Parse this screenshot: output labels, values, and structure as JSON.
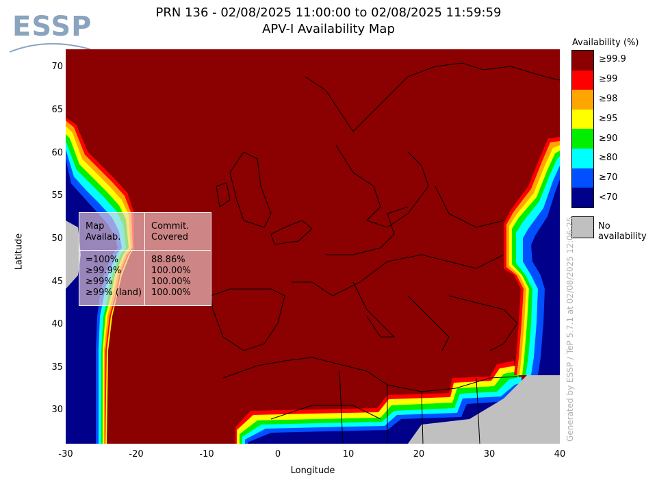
{
  "header": {
    "logo_text": "ESSP",
    "title_line1": "PRN 136 - 02/08/2025 11:00:00 to 02/08/2025 11:59:59",
    "title_line2": "APV-I Availability Map"
  },
  "axes": {
    "xlabel": "Longitude",
    "ylabel": "Latitude",
    "xticks": [
      "-30",
      "-20",
      "-10",
      "0",
      "10",
      "20",
      "30",
      "40"
    ],
    "yticks": [
      "70",
      "65",
      "60",
      "55",
      "50",
      "45",
      "40",
      "35",
      "30"
    ]
  },
  "stats_table": {
    "col1_header_a": "Map",
    "col1_header_b": "Availab.",
    "col2_header_a": "Commit.",
    "col2_header_b": "Covered",
    "rows": [
      {
        "label": "=100%",
        "value": "88.86%"
      },
      {
        "label": "≥99.9%",
        "value": "100.00%"
      },
      {
        "label": "≥99%",
        "value": "100.00%"
      },
      {
        "label": "≥99% (land)",
        "value": "100.00%"
      }
    ]
  },
  "legend": {
    "title": "Availability (%)",
    "items": [
      {
        "label": "≥99.9",
        "color": "#8b0000"
      },
      {
        "label": "≥99",
        "color": "#ff0000"
      },
      {
        "label": "≥98",
        "color": "#ffa500"
      },
      {
        "label": "≥95",
        "color": "#ffff00"
      },
      {
        "label": "≥90",
        "color": "#00ee00"
      },
      {
        "label": "≥80",
        "color": "#00ffff"
      },
      {
        "label": "≥70",
        "color": "#0050ff"
      },
      {
        "label": "<70",
        "color": "#00008b"
      }
    ],
    "no_availability_label": "No availability",
    "no_availability_color": "#c0c0c0"
  },
  "credit": "Generated by ESSP / TeP 5.7.1 at 02/08/2025 12:06:25"
}
